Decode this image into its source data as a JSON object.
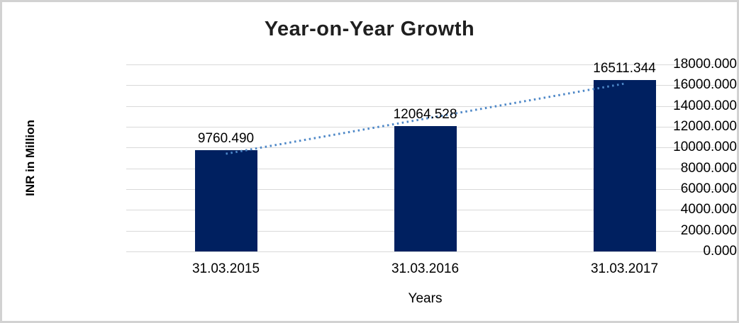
{
  "chart_data": {
    "type": "bar",
    "title": "Year-on-Year Growth",
    "xlabel": "Years",
    "ylabel": "INR in Million",
    "categories": [
      "31.03.2015",
      "31.03.2016",
      "31.03.2017"
    ],
    "values": [
      9760.49,
      12064.528,
      16511.344
    ],
    "data_labels": [
      "9760.490",
      "12064.528",
      "16511.344"
    ],
    "ylim": [
      0,
      18000
    ],
    "ytick_step": 2000,
    "yticks": [
      "18000.000",
      "16000.000",
      "14000.000",
      "12000.000",
      "10000.000",
      "8000.000",
      "6000.000",
      "4000.000",
      "2000.000",
      "0.000"
    ],
    "grid": true,
    "legend_position": "none",
    "trendline": {
      "type": "linear",
      "style": "dotted"
    },
    "colors": {
      "bar": "#002060",
      "trendline": "#4d87c7",
      "gridline": "#d9d9d9",
      "axis_text": "#000000",
      "title_text": "#1f1f1f",
      "frame_border": "#d2d2d2",
      "background": "#ffffff"
    }
  }
}
